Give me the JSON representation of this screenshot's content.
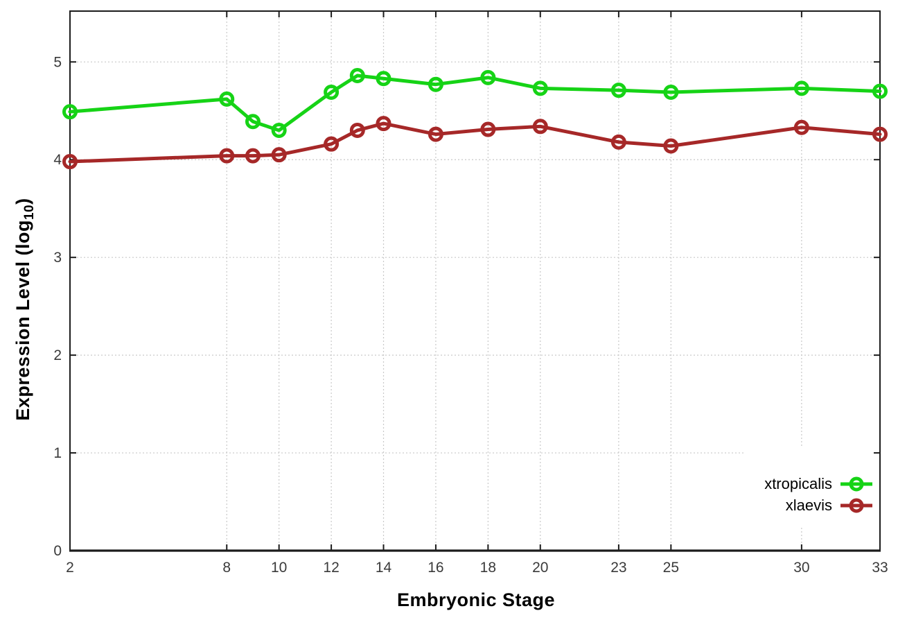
{
  "chart_data": {
    "type": "line",
    "title": "",
    "xlabel": "Embryonic Stage",
    "ylabel_pre": "Expression Level (log",
    "ylabel_sub": "10",
    "ylabel_post": ")",
    "xlim": [
      2,
      33
    ],
    "ylim": [
      0,
      5.52
    ],
    "x_ticks": [
      2,
      8,
      10,
      12,
      14,
      16,
      18,
      20,
      23,
      25,
      30,
      33
    ],
    "y_ticks": [
      0,
      1,
      2,
      3,
      4,
      5
    ],
    "grid": true,
    "legend_position": "bottom-right-inside",
    "x": [
      2,
      8,
      9,
      10,
      12,
      13,
      14,
      16,
      18,
      20,
      23,
      25,
      30,
      33
    ],
    "series": [
      {
        "name": "xtropicalis",
        "color": "#16d316",
        "values": [
          4.49,
          4.62,
          4.39,
          4.3,
          4.69,
          4.86,
          4.83,
          4.77,
          4.84,
          4.73,
          4.71,
          4.69,
          4.73,
          4.7
        ]
      },
      {
        "name": "xlaevis",
        "color": "#a62828",
        "values": [
          3.98,
          4.04,
          4.04,
          4.05,
          4.16,
          4.3,
          4.37,
          4.26,
          4.31,
          4.34,
          4.18,
          4.14,
          4.33,
          4.26
        ]
      }
    ],
    "colors": {
      "border": "#1c1c1c",
      "grid": "#c8c8c8",
      "tick_label": "#3a3a3a",
      "background": "#ffffff"
    }
  }
}
